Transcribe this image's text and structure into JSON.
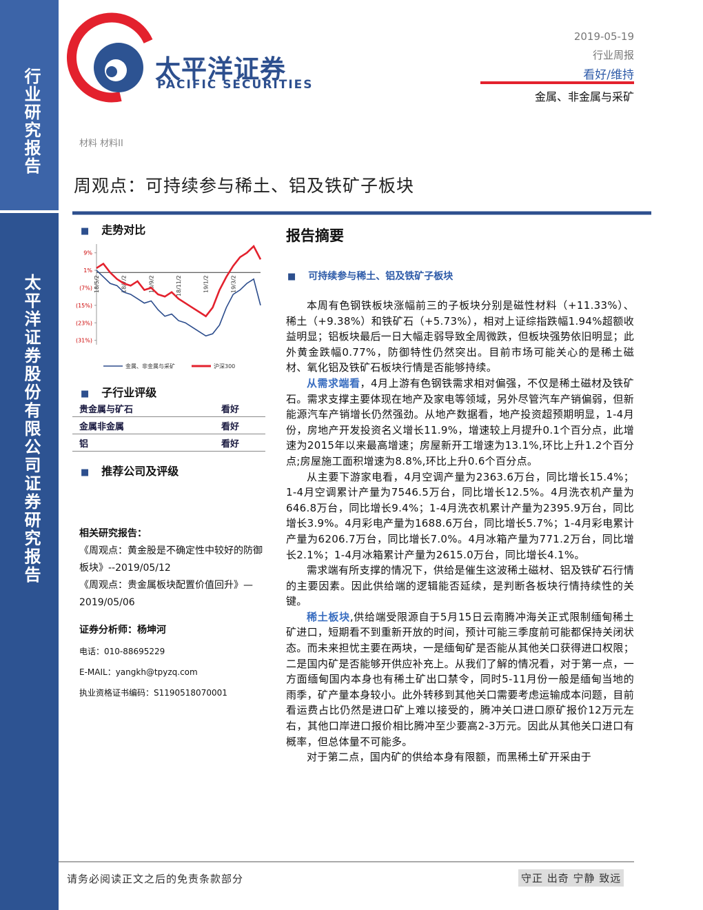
{
  "sidebar": {
    "top": "行业研究报告",
    "bottom": "太平洋证券股份有限公司证券研究报告"
  },
  "header": {
    "brand_cn": "太平洋证券",
    "brand_en": "PACIFIC SECURITIES",
    "date": "2019-05-19",
    "report_type": "行业周报",
    "rating": "看好/维持",
    "sector": "金属、非金属与采矿",
    "category": "材料 材料II",
    "title": "周观点：可持续参与稀土、铝及铁矿子板块"
  },
  "left": {
    "trend_heading": "走势对比",
    "rating_heading": "子行业评级",
    "rating_table": [
      [
        "贵金属与矿石",
        "看好"
      ],
      [
        "金属非金属",
        "看好"
      ],
      [
        "铝",
        "看好"
      ]
    ],
    "company_heading": "推荐公司及评级",
    "related_heading": "相关研究报告：",
    "related": [
      "《周观点：黄金股是不确定性中较好的防御板块》--2019/05/12",
      "《周观点：贵金属板块配置价值回升》—2019/05/06"
    ],
    "analyst": "证券分析师：杨坤河",
    "phone": "电话：010-88695229",
    "email": "E-MAIL：yangkh@tpyzq.com",
    "license": "执业资格证书编码：S1190518070001"
  },
  "chart_data": {
    "type": "line",
    "categories": [
      "18/5/2",
      null,
      null,
      null,
      "18/7/2",
      null,
      null,
      null,
      "18/9/2",
      null,
      null,
      null,
      "18/11/2",
      null,
      null,
      null,
      "19/1/2",
      null,
      null,
      null,
      "19/3/2",
      null,
      null,
      null,
      null
    ],
    "series": [
      {
        "name": "金属、非金属与采矿",
        "color": "#2b4c8c",
        "values": [
          1,
          -2,
          -5,
          -6,
          -9,
          -10,
          -12,
          -14,
          -13,
          -17,
          -20,
          -19,
          -22,
          -23,
          -25,
          -27,
          -29,
          -28,
          -24,
          -16,
          -10,
          -8,
          -5,
          -3,
          -15
        ]
      },
      {
        "name": "沪深300",
        "color": "#e3212d",
        "values": [
          2,
          4,
          0,
          -3,
          -5,
          -6,
          -4,
          -8,
          -7,
          -10,
          -11,
          -9,
          -12,
          -14,
          -16,
          -18,
          -20,
          -16,
          -8,
          -2,
          3,
          7,
          9,
          12,
          6
        ]
      }
    ],
    "ylim": [
      -33,
      13
    ],
    "yticks": [
      {
        "value": 9,
        "label": "9%"
      },
      {
        "value": 1,
        "label": "1%"
      },
      {
        "value": -7,
        "label": "(7%)"
      },
      {
        "value": -15,
        "label": "(15%)"
      },
      {
        "value": -23,
        "label": "(23%)"
      },
      {
        "value": -31,
        "label": "(31%)"
      }
    ]
  },
  "summary": {
    "heading": "报告摘要",
    "subheading": "可持续参与稀土、铝及铁矿子板块",
    "paragraphs": [
      {
        "text": "本周有色钢铁板块涨幅前三的子板块分别是磁性材料（+11.33%）、稀土（+9.38%）和铁矿石（+5.73%），相对上证综指跌幅1.94%超额收益明显；铝板块最后一日大幅走弱导致全周微跌，但板块强势依旧明显；此外黄金跌幅0.77%，防御特性仍然突出。目前市场可能关心的是稀土磁材、氧化铝及铁矿石板块行情是否能够持续。"
      },
      {
        "lead": "从需求端看",
        "text": "，4月上游有色钢铁需求相对偏强，不仅是稀土磁材及铁矿石。需求支撑主要体现在地产及家电等领域，另外尽管汽车产销偏弱，但新能源汽车产销增长仍然强劲。从地产数据看，地产投资超预期明显，1-4月份，房地产开发投资名义增长11.9%，增速较上月提升0.1个百分点，此增速为2015年以来最高增速；房屋新开工增速为13.1%,环比上升1.2个百分点;房屋施工面积增速为8.8%,环比上升0.6个百分点。"
      },
      {
        "text": "从主要下游家电看，4月空调产量为2363.6万台，同比增长15.4%；1-4月空调累计产量为7546.5万台，同比增长12.5%。4月洗衣机产量为646.8万台，同比增长9.4%；1-4月洗衣机累计产量为2395.9万台，同比增长3.9%。4月彩电产量为1688.6万台，同比增长5.7%；1-4月彩电累计产量为6206.7万台，同比增长7.0%。4月冰箱产量为771.2万台，同比增长2.1%；1-4月冰箱累计产量为2615.0万台，同比增长4.1%。"
      },
      {
        "text": "需求端有所支撑的情况下，供给是催生这波稀土磁材、铝及铁矿石行情的主要因素。因此供给端的逻辑能否延续，是判断各板块行情持续性的关键。"
      },
      {
        "lead": "稀土板块",
        "text": ",供给端受限源自于5月15日云南腾冲海关正式限制缅甸稀土矿进口，短期看不到重新开放的时间，预计可能三季度前可能都保持关闭状态。而未来担忧主要在两块，一是缅甸矿是否能从其他关口获得进口权限；二是国内矿是否能够开供应补充上。从我们了解的情况看，对于第一点，一方面缅甸国内本身也有稀土矿出口禁令，同时5-11月份一般是缅甸当地的雨季，矿产量本身较小。此外转移到其他关口需要考虑运输成本问题，目前看运费占比仍然是进口矿上难以接受的，腾冲关口进口原矿报价12万元左右，其他口岸进口报价相比腾冲至少要高2-3万元。因此从其他关口进口有概率，但总体量不可能多。"
      },
      {
        "text": "对于第二点，国内矿的供给本身有限额，而黑稀土矿开采由于"
      }
    ]
  },
  "footer": {
    "disclaimer": "请务必阅读正文之后的免责条款部分",
    "motto": "守正 出奇 宁静 致远"
  }
}
